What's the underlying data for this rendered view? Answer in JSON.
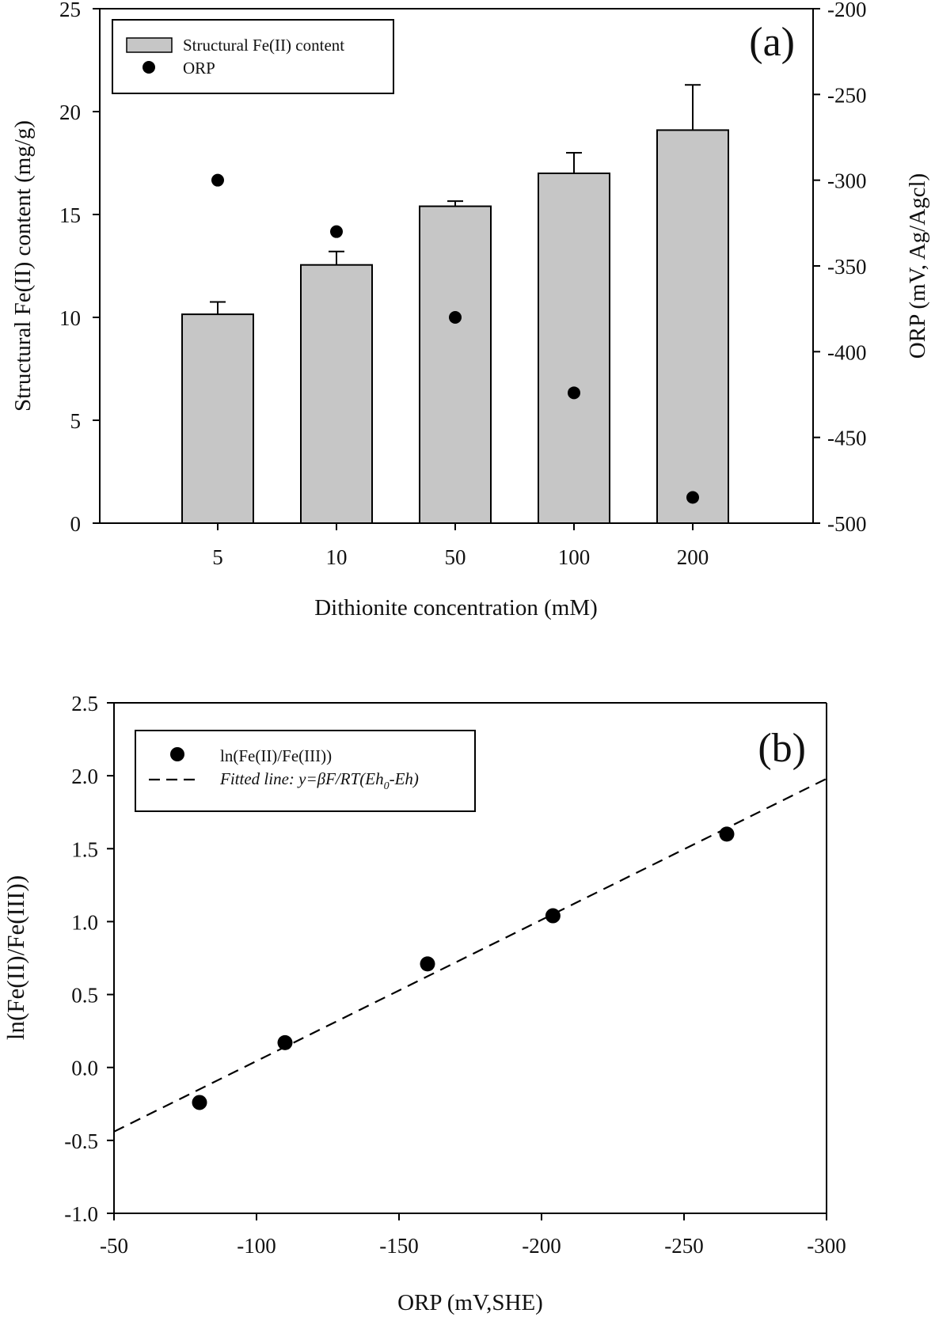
{
  "chart_data": [
    {
      "panel": "(a)",
      "type": "bar",
      "title": "",
      "xlabel": "Dithionite concentration (mM)",
      "ylabel": "Structural Fe(II) content (mg/g)",
      "ylabel_right": "ORP (mV, Ag/Agcl)",
      "categories": [
        "5",
        "10",
        "50",
        "100",
        "200"
      ],
      "ylim": [
        0,
        25
      ],
      "yticks": [
        "0",
        "5",
        "10",
        "15",
        "20",
        "25"
      ],
      "ylim_right": [
        -500,
        -200
      ],
      "yticks_right": [
        "-500",
        "-450",
        "-400",
        "-350",
        "-300",
        "-250",
        "-200"
      ],
      "series": [
        {
          "name": "Structural Fe(II) content",
          "kind": "bar",
          "axis": "left",
          "color": "#c6c6c6",
          "values": [
            10.15,
            12.55,
            15.4,
            17.0,
            19.1
          ],
          "error_upper": [
            0.6,
            0.65,
            0.25,
            1.0,
            2.2
          ]
        },
        {
          "name": "ORP",
          "kind": "scatter",
          "axis": "right",
          "color": "#000000",
          "values": [
            -300,
            -330,
            -380,
            -424,
            -485
          ]
        }
      ],
      "legend": [
        "Structural Fe(II) content",
        "ORP"
      ],
      "legend_position": "top-left",
      "grid": false
    },
    {
      "panel": "(b)",
      "type": "scatter",
      "title": "",
      "xlabel": "ORP (mV,SHE)",
      "ylabel": "ln(Fe(II)/Fe(III))",
      "xlim": [
        -50,
        -300
      ],
      "xticks": [
        "-50",
        "-100",
        "-150",
        "-200",
        "-250",
        "-300"
      ],
      "ylim": [
        -1.0,
        2.5
      ],
      "yticks": [
        "-1.0",
        "-0.5",
        "0.0",
        "0.5",
        "1.0",
        "1.5",
        "2.0",
        "2.5"
      ],
      "series": [
        {
          "name": "ln(Fe(II)/Fe(III))",
          "kind": "scatter",
          "color": "#000000",
          "x": [
            -80,
            -110,
            -160,
            -204,
            -265
          ],
          "y": [
            -0.24,
            0.17,
            0.71,
            1.04,
            1.6
          ]
        },
        {
          "name": "Fitted line",
          "kind": "line",
          "style": "dashed",
          "color": "#000000",
          "x": [
            -50,
            -300
          ],
          "y": [
            -0.44,
            1.98
          ]
        }
      ],
      "legend": [
        "ln(Fe(II)/Fe(III))",
        "Fitted line: y=βF/RT(Eh0-Eh)"
      ],
      "legend_main": "Fitted line: y=βF/RT(Eh",
      "legend_sub": "0",
      "legend_tail": "-Eh)",
      "legend_position": "top-left",
      "grid": false
    }
  ]
}
